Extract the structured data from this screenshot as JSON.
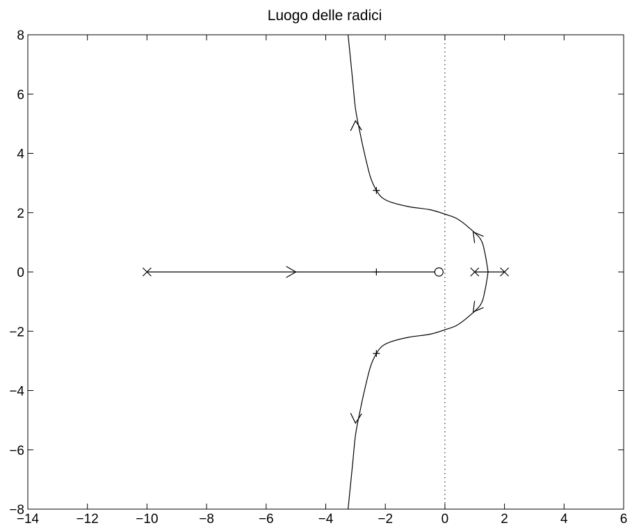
{
  "chart_data": {
    "type": "line",
    "title": "Luogo delle radici",
    "xlabel": "",
    "ylabel": "",
    "xlim": [
      -14,
      6
    ],
    "ylim": [
      -8,
      8
    ],
    "xticks": [
      -14,
      -12,
      -10,
      -8,
      -6,
      -4,
      -2,
      0,
      2,
      4,
      6
    ],
    "yticks": [
      -8,
      -6,
      -4,
      -2,
      0,
      2,
      4,
      6,
      8
    ],
    "xtick_labels": [
      "−14",
      "−12",
      "−10",
      "−8",
      "−6",
      "−4",
      "−2",
      "0",
      "2",
      "4",
      "6"
    ],
    "ytick_labels": [
      "−8",
      "−6",
      "−4",
      "−2",
      "0",
      "2",
      "4",
      "6",
      "8"
    ],
    "grid": false,
    "legend": "none",
    "imag_axis_line": {
      "x": 0,
      "style": "dotted"
    },
    "poles": [
      {
        "x": -10,
        "y": 0
      },
      {
        "x": 1,
        "y": 0
      },
      {
        "x": 2,
        "y": 0
      }
    ],
    "zeros": [
      {
        "x": -0.2,
        "y": 0
      }
    ],
    "branches": [
      {
        "points": [
          [
            -10,
            0
          ],
          [
            -0.2,
            0
          ]
        ]
      },
      {
        "points": [
          [
            1,
            0
          ],
          [
            1.45,
            0
          ]
        ]
      },
      {
        "points": [
          [
            2,
            0
          ],
          [
            1.45,
            0
          ]
        ]
      },
      {
        "points": [
          [
            1.45,
            0
          ],
          [
            1.35,
            0.6
          ],
          [
            1.2,
            1.1
          ],
          [
            0.8,
            1.5
          ],
          [
            0.4,
            1.8
          ],
          [
            0,
            1.95
          ],
          [
            -0.5,
            2.1
          ],
          [
            -1.2,
            2.2
          ],
          [
            -1.8,
            2.35
          ],
          [
            -2.1,
            2.5
          ],
          [
            -2.3,
            2.75
          ],
          [
            -2.5,
            3.2
          ],
          [
            -2.7,
            4.0
          ],
          [
            -2.85,
            4.7
          ],
          [
            -3.0,
            5.5
          ],
          [
            -3.1,
            6.5
          ],
          [
            -3.2,
            7.5
          ],
          [
            -3.25,
            8
          ]
        ]
      },
      {
        "points": [
          [
            1.45,
            0
          ],
          [
            1.35,
            -0.6
          ],
          [
            1.2,
            -1.1
          ],
          [
            0.8,
            -1.5
          ],
          [
            0.4,
            -1.8
          ],
          [
            0,
            -1.95
          ],
          [
            -0.5,
            -2.1
          ],
          [
            -1.2,
            -2.2
          ],
          [
            -1.8,
            -2.35
          ],
          [
            -2.1,
            -2.5
          ],
          [
            -2.3,
            -2.75
          ],
          [
            -2.5,
            -3.2
          ],
          [
            -2.7,
            -4.0
          ],
          [
            -2.85,
            -4.7
          ],
          [
            -3.0,
            -5.5
          ],
          [
            -3.1,
            -6.5
          ],
          [
            -3.2,
            -7.5
          ],
          [
            -3.25,
            -8
          ]
        ]
      }
    ],
    "arrows": [
      {
        "x": -5,
        "y": 0,
        "direction": "right"
      },
      {
        "x": 0.95,
        "y": 1.35,
        "direction": "up-left"
      },
      {
        "x": -3.0,
        "y": 5.1,
        "direction": "up"
      },
      {
        "x": 0.95,
        "y": -1.35,
        "direction": "down-left"
      },
      {
        "x": -3.0,
        "y": -5.1,
        "direction": "down"
      }
    ],
    "gain_markers": [
      {
        "x": -2.3,
        "y": 2.75
      },
      {
        "x": -2.3,
        "y": 0
      },
      {
        "x": -2.3,
        "y": -2.75
      }
    ]
  }
}
